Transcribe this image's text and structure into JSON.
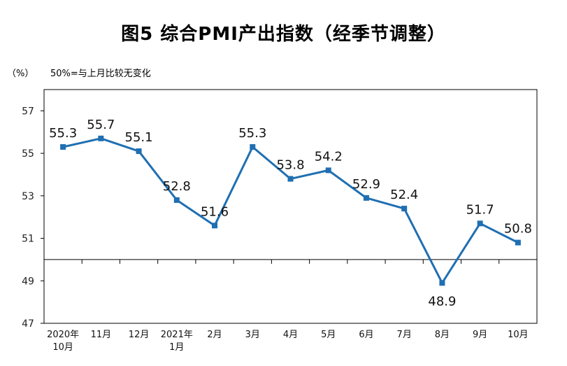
{
  "title": "图5 综合PMI产出指数（经季节调整）",
  "unit": "（%）",
  "note": "50%=与上月比较无变化",
  "colors": {
    "line": "#1f6fb2",
    "axis": "#000000"
  },
  "chart_data": {
    "type": "line",
    "title": "图5 综合PMI产出指数（经季节调整）",
    "ylabel": "（%）",
    "ylim": [
      47,
      58
    ],
    "yticks": [
      "57",
      "55",
      "53",
      "51",
      "49",
      "47"
    ],
    "baseline": 50,
    "categories": [
      [
        "2020年",
        "10月"
      ],
      [
        "11月"
      ],
      [
        "12月"
      ],
      [
        "2021年",
        "1月"
      ],
      [
        "2月"
      ],
      [
        "3月"
      ],
      [
        "4月"
      ],
      [
        "5月"
      ],
      [
        "6月"
      ],
      [
        "7月"
      ],
      [
        "8月"
      ],
      [
        "9月"
      ],
      [
        "10月"
      ]
    ],
    "series": [
      {
        "name": "综合PMI产出指数",
        "values": [
          55.3,
          55.7,
          55.1,
          52.8,
          51.6,
          55.3,
          53.8,
          54.2,
          52.9,
          52.4,
          48.9,
          51.7,
          50.8
        ]
      }
    ],
    "data_labels": [
      "55.3",
      "55.7",
      "55.1",
      "52.8",
      "51.6",
      "55.3",
      "53.8",
      "54.2",
      "52.9",
      "52.4",
      "48.9",
      "51.7",
      "50.8"
    ]
  }
}
